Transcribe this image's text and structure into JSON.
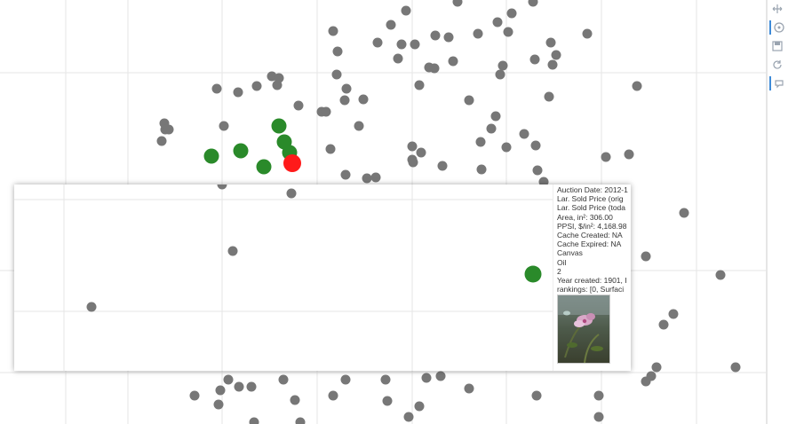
{
  "chart_data": {
    "type": "scatter",
    "title": "",
    "xlabel": "",
    "ylabel": "",
    "grid": true,
    "colors": {
      "default": "#777777",
      "related": "#2a8a2a",
      "selected": "#ff1a1a"
    },
    "points_default": [
      [
        375,
        35
      ],
      [
        440,
        28
      ],
      [
        457,
        12
      ],
      [
        515,
        2
      ],
      [
        600,
        2
      ],
      [
        576,
        15
      ],
      [
        560,
        25
      ],
      [
        425,
        48
      ],
      [
        452,
        50
      ],
      [
        467,
        50
      ],
      [
        490,
        40
      ],
      [
        505,
        42
      ],
      [
        538,
        38
      ],
      [
        572,
        36
      ],
      [
        380,
        58
      ],
      [
        448,
        66
      ],
      [
        483,
        76
      ],
      [
        489,
        77
      ],
      [
        510,
        69
      ],
      [
        566,
        74
      ],
      [
        563,
        84
      ],
      [
        602,
        67
      ],
      [
        620,
        48
      ],
      [
        626,
        62
      ],
      [
        622,
        73
      ],
      [
        661,
        38
      ],
      [
        379,
        84
      ],
      [
        244,
        100
      ],
      [
        268,
        104
      ],
      [
        289,
        97
      ],
      [
        306,
        86
      ],
      [
        312,
        96
      ],
      [
        314,
        88
      ],
      [
        390,
        100
      ],
      [
        388,
        113
      ],
      [
        409,
        112
      ],
      [
        472,
        96
      ],
      [
        528,
        113
      ],
      [
        618,
        109
      ],
      [
        717,
        97
      ],
      [
        336,
        119
      ],
      [
        362,
        126
      ],
      [
        367,
        126
      ],
      [
        558,
        131
      ],
      [
        185,
        139
      ],
      [
        186,
        146
      ],
      [
        190,
        146
      ],
      [
        182,
        159
      ],
      [
        252,
        142
      ],
      [
        404,
        142
      ],
      [
        553,
        145
      ],
      [
        541,
        160
      ],
      [
        590,
        151
      ],
      [
        603,
        164
      ],
      [
        372,
        168
      ],
      [
        464,
        165
      ],
      [
        474,
        172
      ],
      [
        464,
        180
      ],
      [
        465,
        183
      ],
      [
        498,
        187
      ],
      [
        570,
        166
      ],
      [
        682,
        177
      ],
      [
        708,
        174
      ],
      [
        542,
        191
      ],
      [
        605,
        192
      ],
      [
        389,
        197
      ],
      [
        413,
        201
      ],
      [
        423,
        200
      ],
      [
        612,
        205
      ],
      [
        770,
        240
      ],
      [
        727,
        289
      ],
      [
        811,
        310
      ],
      [
        758,
        354
      ],
      [
        747,
        366
      ],
      [
        739,
        414
      ],
      [
        733,
        424
      ],
      [
        727,
        430
      ],
      [
        828,
        414
      ],
      [
        219,
        446
      ],
      [
        248,
        440
      ],
      [
        246,
        456
      ],
      [
        257,
        428
      ],
      [
        269,
        436
      ],
      [
        283,
        436
      ],
      [
        319,
        428
      ],
      [
        332,
        451
      ],
      [
        375,
        446
      ],
      [
        389,
        428
      ],
      [
        434,
        428
      ],
      [
        436,
        452
      ],
      [
        460,
        470
      ],
      [
        472,
        458
      ],
      [
        480,
        426
      ],
      [
        496,
        424
      ],
      [
        528,
        438
      ],
      [
        604,
        446
      ],
      [
        674,
        446
      ],
      [
        674,
        470
      ],
      [
        286,
        476
      ],
      [
        338,
        476
      ]
    ],
    "points_related": [
      [
        238,
        176
      ],
      [
        271,
        170
      ],
      [
        297,
        188
      ],
      [
        314,
        142
      ],
      [
        320,
        160
      ],
      [
        326,
        172
      ]
    ],
    "point_selected": [
      329,
      184
    ],
    "overlay_points_default": [
      [
        328,
        218
      ],
      [
        250,
        208
      ],
      [
        262,
        283
      ],
      [
        103,
        346
      ]
    ],
    "overlay_points_related": [
      [
        600,
        309
      ]
    ],
    "tooltip": {
      "lines": [
        "Auction Date: 2012-1",
        "Lar. Sold Price (orig",
        "Lar. Sold Price (toda",
        "Area, in²: 306.00",
        "PPSI, $/in²: 4,168.98",
        "Cache Created: NA",
        "Cache Expired: NA",
        "Canvas",
        "Oil",
        "2",
        "Year created: 1901, I",
        "rankings: [0, Surfaci"
      ]
    }
  },
  "toolbar": {
    "icons": [
      "pan-icon",
      "wheel-zoom-icon",
      "save-icon",
      "reset-icon",
      "hover-icon"
    ]
  }
}
